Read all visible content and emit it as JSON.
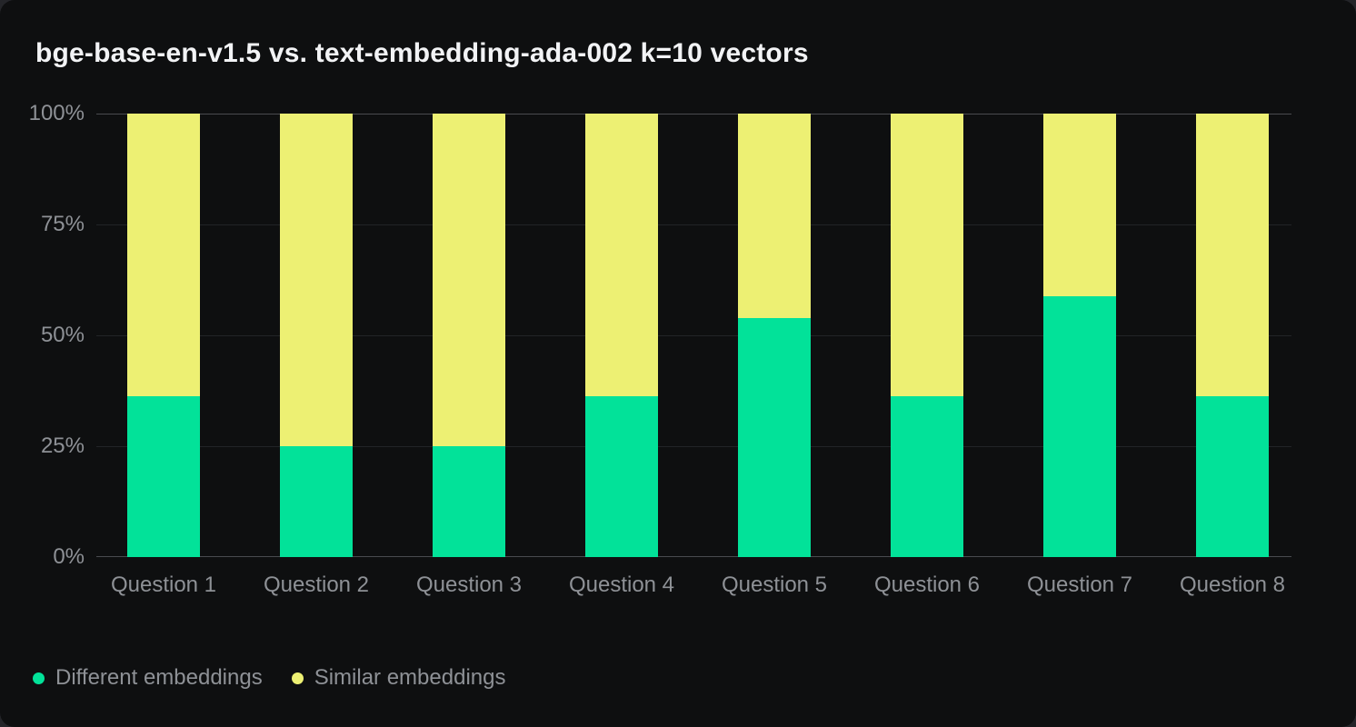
{
  "chart": {
    "title": "bge-base-en-v1.5 vs. text-embedding-ada-002 k=10 vectors"
  },
  "chart_data": {
    "type": "bar",
    "stacked": true,
    "orientation": "vertical",
    "title": "bge-base-en-v1.5 vs. text-embedding-ada-002 k=10 vectors",
    "categories": [
      "Question 1",
      "Question 2",
      "Question 3",
      "Question 4",
      "Question 5",
      "Question 6",
      "Question 7",
      "Question 8"
    ],
    "series": [
      {
        "name": "Different embeddings",
        "color": "#02E299",
        "values": [
          36.3,
          25,
          25,
          36.3,
          53.9,
          36.3,
          58.9,
          36.3
        ]
      },
      {
        "name": "Similar embeddings",
        "color": "#EDF073",
        "values": [
          63.7,
          75,
          75,
          63.7,
          46.1,
          63.7,
          41.1,
          63.7
        ]
      }
    ],
    "xlabel": "",
    "ylabel": "",
    "ylim": [
      0,
      100
    ],
    "yticks": [
      {
        "value": 0,
        "label": "0%"
      },
      {
        "value": 25,
        "label": "25%"
      },
      {
        "value": 50,
        "label": "50%"
      },
      {
        "value": 75,
        "label": "75%"
      },
      {
        "value": 100,
        "label": "100%"
      }
    ],
    "grid": true,
    "legend_position": "bottom"
  },
  "colors": {
    "page_background": "#242529",
    "card_background": "#0E0F10",
    "grid_line": "#222427",
    "axis_line": "#494B4F",
    "tick_text": "#8E9196",
    "title_text": "#F2F3F5",
    "series_different": "#02E299",
    "series_similar": "#EDF073"
  }
}
